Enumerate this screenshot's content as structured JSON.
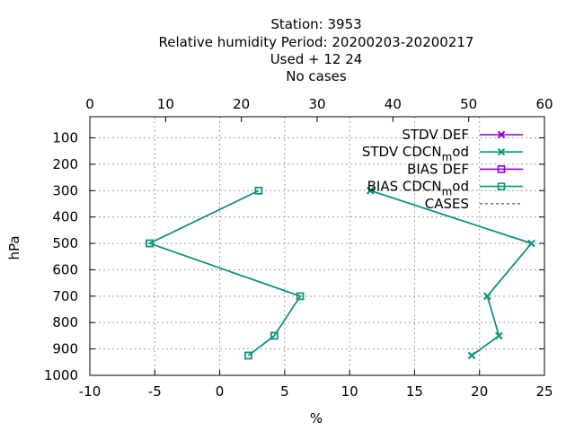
{
  "chart_data": {
    "type": "line",
    "title_lines": [
      "Station:     3953",
      "Relative humidity  Period: 20200203-20200217",
      "Used   + 12 24",
      "No cases"
    ],
    "xlabel": "%",
    "ylabel": "hPa",
    "x_bottom": {
      "lim": [
        -10,
        25
      ],
      "ticks": [
        -10,
        -5,
        0,
        5,
        10,
        15,
        20,
        25
      ]
    },
    "x_top": {
      "lim": [
        0,
        60
      ],
      "ticks": [
        0,
        10,
        20,
        30,
        40,
        50,
        60
      ]
    },
    "y": {
      "lim": [
        1000,
        20
      ],
      "inverted": true,
      "ticks": [
        100,
        200,
        300,
        400,
        500,
        600,
        700,
        800,
        900,
        1000
      ]
    },
    "grid": true,
    "legend_position": "top-right",
    "series": [
      {
        "name": "STDV DEF",
        "name_base": "STDV DEF",
        "name_sub": "",
        "name_tail": "",
        "marker": "x",
        "color": "#9400d3",
        "axis": "bottom",
        "points": [
          [
            11.6,
            300
          ],
          [
            24.0,
            500
          ],
          [
            20.6,
            700
          ],
          [
            21.5,
            850
          ],
          [
            19.4,
            925
          ]
        ]
      },
      {
        "name": "STDV CDCN_mod",
        "name_base": "STDV CDCN",
        "name_sub": "m",
        "name_tail": "od",
        "marker": "x",
        "color": "#009e73",
        "axis": "bottom",
        "points": [
          [
            11.6,
            300
          ],
          [
            24.0,
            500
          ],
          [
            20.6,
            700
          ],
          [
            21.5,
            850
          ],
          [
            19.4,
            925
          ]
        ]
      },
      {
        "name": "BIAS DEF",
        "name_base": "BIAS DEF",
        "name_sub": "",
        "name_tail": "",
        "marker": "square",
        "color": "#9400d3",
        "axis": "bottom",
        "points": [
          [
            3.0,
            300
          ],
          [
            -5.4,
            500
          ],
          [
            6.2,
            700
          ],
          [
            4.2,
            850
          ],
          [
            2.2,
            925
          ]
        ]
      },
      {
        "name": "BIAS CDCN_mod",
        "name_base": "BIAS CDCN",
        "name_sub": "m",
        "name_tail": "od",
        "marker": "square",
        "color": "#009e73",
        "axis": "bottom",
        "points": [
          [
            3.0,
            300
          ],
          [
            -5.4,
            500
          ],
          [
            6.2,
            700
          ],
          [
            4.2,
            850
          ],
          [
            2.2,
            925
          ]
        ]
      },
      {
        "name": "CASES",
        "name_base": "CASES",
        "name_sub": "",
        "name_tail": "",
        "marker": "none",
        "color": "#808080",
        "dashed": true,
        "axis": "top",
        "points": []
      }
    ]
  }
}
